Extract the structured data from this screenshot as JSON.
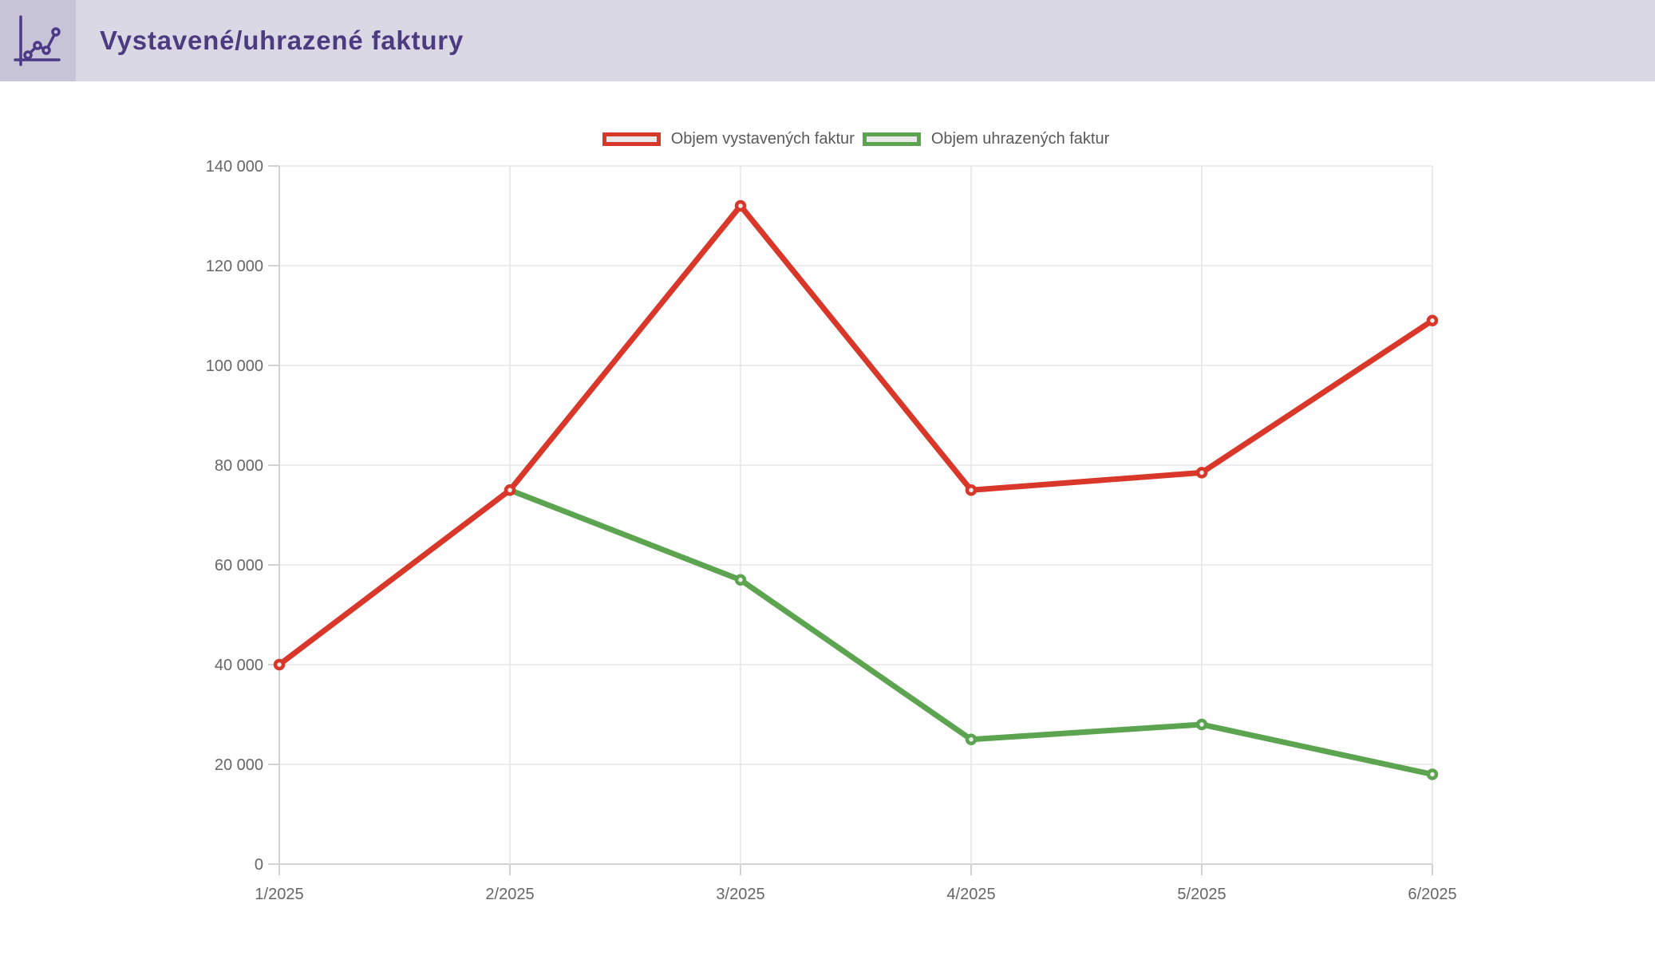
{
  "header": {
    "title": "Vystavené/uhrazené faktury"
  },
  "chart_data": {
    "type": "line",
    "title": "Vystavené/uhrazené faktury",
    "categories": [
      "1/2025",
      "2/2025",
      "3/2025",
      "4/2025",
      "5/2025",
      "6/2025"
    ],
    "series": [
      {
        "name": "Objem vystavených faktur",
        "color": "#d9372a",
        "point_fill": "#ededed",
        "values": [
          40000,
          75000,
          132000,
          75000,
          78500,
          109000
        ]
      },
      {
        "name": "Objem uhrazených faktur",
        "color": "#5ca450",
        "point_fill": "#ededed",
        "values": [
          null,
          75000,
          57000,
          25000,
          28000,
          18000
        ]
      }
    ],
    "ylim": [
      0,
      140000
    ],
    "ytick_step": 20000,
    "ytick_labels": [
      "0",
      "20 000",
      "40 000",
      "60 000",
      "80 000",
      "100 000",
      "120 000",
      "140 000"
    ],
    "xlabel": "",
    "ylabel": "",
    "grid": true,
    "legend_position": "top"
  },
  "colors": {
    "header_bg": "#dbd8e6",
    "icon_box_bg": "#c8c4d8",
    "title_text": "#4d3b80",
    "icon_stroke": "#4c3a87",
    "grid": "#e6e6e6",
    "axis": "#d2d2d2",
    "tick_text": "#666666",
    "legend_text": "#595959",
    "legend_swatch_fill": "#e9e9e9",
    "background": "#ffffff"
  }
}
